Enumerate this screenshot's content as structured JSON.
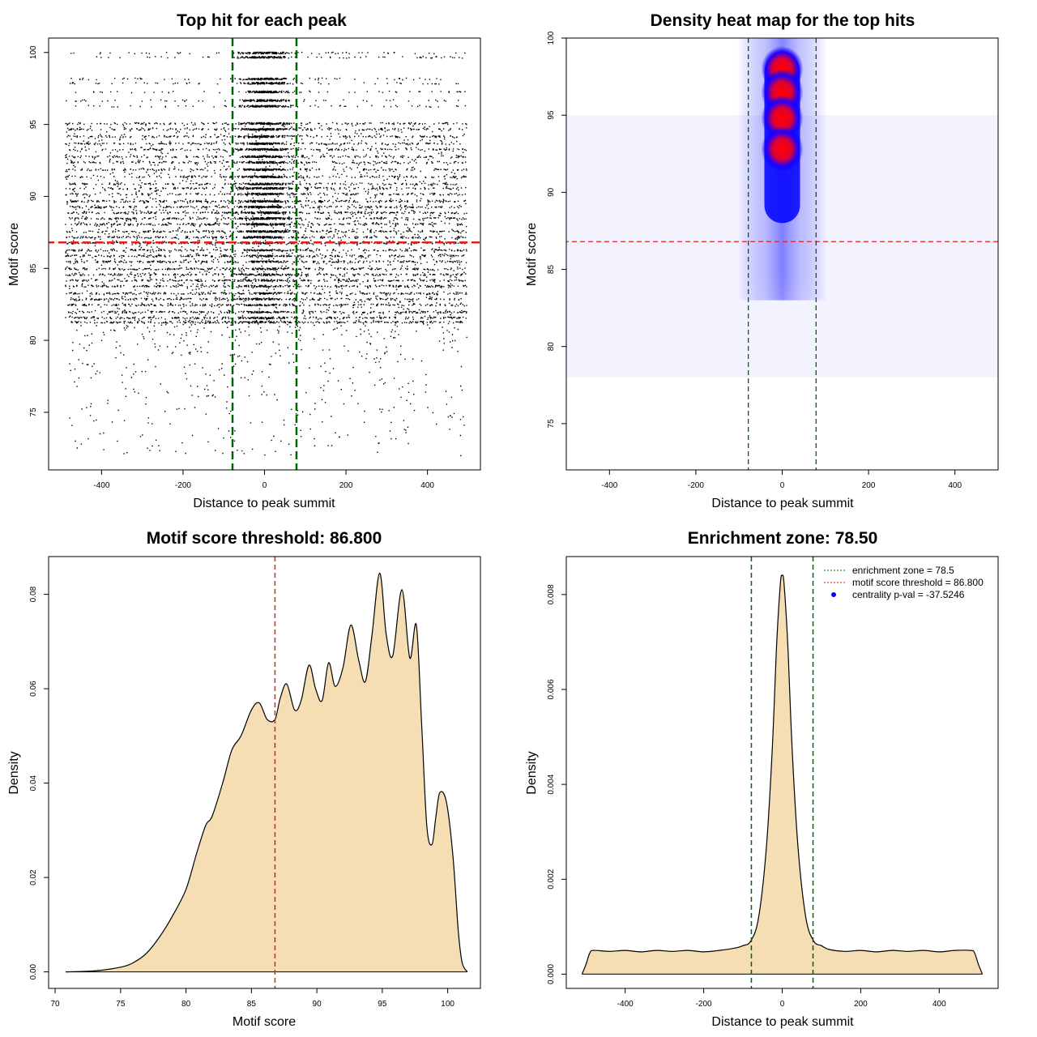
{
  "colors": {
    "density_fill": "#f5deb3",
    "threshold_line": "#e02020",
    "zone_line": "#006400",
    "heat_peak": "#ff0000",
    "heat_mid": "#0000ff",
    "centrality_dot": "#0000ff"
  },
  "chart_data": [
    {
      "type": "scatter",
      "title": "Top hit for each peak",
      "xlabel": "Distance to peak summit",
      "ylabel": "Motif score",
      "xlim": [
        -530,
        530
      ],
      "ylim": [
        71,
        101
      ],
      "xticks": [
        -400,
        -200,
        0,
        200,
        400
      ],
      "yticks": [
        75,
        80,
        85,
        90,
        95,
        100
      ],
      "score_levels": [
        100,
        99.7,
        98.2,
        97.9,
        97.3,
        96.7,
        96.3,
        95.1,
        94.7,
        94.2,
        93.7,
        93.3,
        92.8,
        92.4,
        91.9,
        91.4,
        90.9,
        90.6,
        90.2,
        89.7,
        89.3,
        88.9,
        88.5,
        88.1,
        87.6,
        87.2,
        86.8,
        86.3,
        85.9,
        85.5,
        85.0,
        84.6,
        84.2,
        83.8,
        83.3,
        82.9,
        82.5,
        82.0,
        81.6,
        81.3
      ],
      "x_range_of_hits": [
        -490,
        495
      ],
      "threshold_y": 86.8,
      "zone_x": [
        -78.5,
        78.5
      ]
    },
    {
      "type": "heatmap",
      "title": "Density heat map for the top hits",
      "xlabel": "Distance to peak summit",
      "ylabel": "Motif score",
      "xlim": [
        -500,
        500
      ],
      "ylim": [
        72,
        100
      ],
      "xticks": [
        -400,
        -200,
        0,
        200,
        400
      ],
      "yticks": [
        75,
        80,
        85,
        90,
        95,
        100
      ],
      "hotspots": [
        {
          "x": 0,
          "y": 98.0
        },
        {
          "x": 0,
          "y": 96.5
        },
        {
          "x": 0,
          "y": 94.8
        },
        {
          "x": 0,
          "y": 92.8
        }
      ],
      "threshold_y": 86.8,
      "zone_x": [
        -78.5,
        78.5
      ]
    },
    {
      "type": "area",
      "title": "Motif score threshold: 86.800",
      "xlabel": "Motif score",
      "ylabel": "Density",
      "xlim": [
        69.5,
        102.5
      ],
      "ylim": [
        -0.0035,
        0.088
      ],
      "xticks": [
        70,
        75,
        80,
        85,
        90,
        95,
        100
      ],
      "yticks": [
        0.0,
        0.02,
        0.04,
        0.06,
        0.08
      ],
      "ytick_labels": [
        "0.00",
        "0.02",
        "0.04",
        "0.06",
        "0.08"
      ],
      "x": [
        70.8,
        73,
        75,
        76,
        77,
        78,
        79,
        80,
        80.8,
        81.5,
        82,
        82.8,
        83.5,
        84.2,
        85,
        85.6,
        86.2,
        86.8,
        87.2,
        87.7,
        88.3,
        88.8,
        89.4,
        89.9,
        90.4,
        90.9,
        91.4,
        92,
        92.6,
        93.2,
        93.7,
        94.2,
        94.8,
        95.3,
        95.8,
        96.5,
        97.1,
        97.6,
        98.0,
        98.4,
        98.8,
        99.1,
        99.4,
        99.9,
        100.4,
        100.8,
        101.1,
        101.5
      ],
      "y": [
        0.0,
        0.0002,
        0.001,
        0.002,
        0.004,
        0.0075,
        0.012,
        0.0175,
        0.025,
        0.031,
        0.033,
        0.04,
        0.047,
        0.05,
        0.0555,
        0.057,
        0.0535,
        0.0535,
        0.058,
        0.061,
        0.0555,
        0.0575,
        0.065,
        0.06,
        0.0575,
        0.0655,
        0.0605,
        0.0645,
        0.0735,
        0.066,
        0.0615,
        0.071,
        0.0845,
        0.0715,
        0.067,
        0.081,
        0.0665,
        0.0735,
        0.053,
        0.031,
        0.027,
        0.033,
        0.038,
        0.036,
        0.0245,
        0.009,
        0.002,
        0.0
      ],
      "threshold_x": 86.8
    },
    {
      "type": "area",
      "title": "Enrichment zone: 78.50",
      "xlabel": "Distance to peak summit",
      "ylabel": "Density",
      "xlim": [
        -550,
        550
      ],
      "ylim": [
        -0.0003,
        0.0088
      ],
      "xticks": [
        -400,
        -200,
        0,
        200,
        400
      ],
      "yticks": [
        0.0,
        0.002,
        0.004,
        0.006,
        0.008
      ],
      "ytick_labels": [
        "0.000",
        "0.002",
        "0.004",
        "0.006",
        "0.008"
      ],
      "x": [
        -510,
        -500,
        -490,
        -480,
        -440,
        -400,
        -360,
        -320,
        -280,
        -240,
        -200,
        -160,
        -120,
        -100,
        -80,
        -60,
        -40,
        -25,
        -15,
        -5,
        0,
        5,
        15,
        25,
        40,
        60,
        80,
        100,
        120,
        160,
        200,
        240,
        280,
        320,
        360,
        400,
        440,
        480,
        490,
        500,
        510
      ],
      "y": [
        0.0,
        0.0002,
        0.00045,
        0.0005,
        0.00048,
        0.0005,
        0.00047,
        0.0005,
        0.00048,
        0.0005,
        0.00047,
        0.0005,
        0.00055,
        0.0006,
        0.0007,
        0.0012,
        0.0027,
        0.0048,
        0.0068,
        0.0082,
        0.0084,
        0.0082,
        0.0068,
        0.0048,
        0.0027,
        0.0012,
        0.0007,
        0.0006,
        0.00052,
        0.00048,
        0.0005,
        0.00047,
        0.0005,
        0.00048,
        0.0005,
        0.00047,
        0.0005,
        0.0005,
        0.00045,
        0.0002,
        0.0
      ],
      "zone_x": [
        -78.5,
        78.5
      ],
      "legend": [
        "enrichment zone = 78.5",
        "motif score threshold = 86.800",
        "centrality p-val = -37.5246"
      ],
      "legend_position": "top-right"
    }
  ]
}
